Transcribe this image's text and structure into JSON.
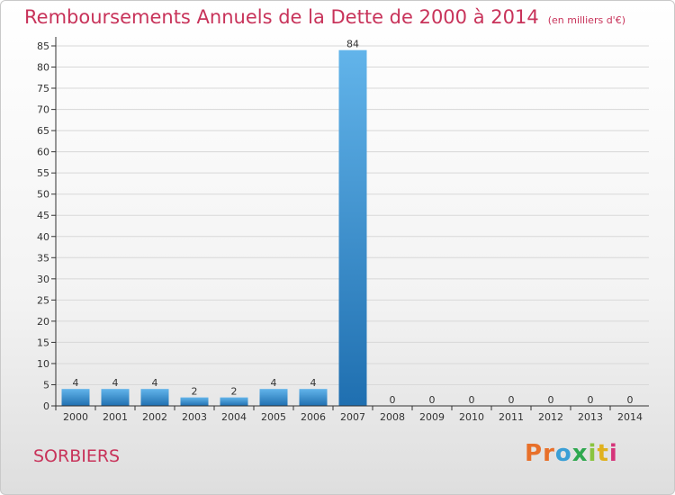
{
  "title": "Remboursements Annuels de la Dette de 2000 à 2014",
  "unit_note": "(en milliers d'€)",
  "commune": "SORBIERS",
  "logo": {
    "letters": [
      "P",
      "r",
      "o",
      "x",
      "i",
      "t",
      "i"
    ],
    "colors": [
      "#e8702a",
      "#e8702a",
      "#3a9fd6",
      "#2fa84f",
      "#8ac43f",
      "#e0b11e",
      "#d6357a"
    ]
  },
  "colors": {
    "title": "#c8335a",
    "bar_top": "#62b4ea",
    "bar_bottom": "#1f6fb0",
    "grid": "#d8d8d8",
    "axis": "#333333"
  },
  "chart_data": {
    "type": "bar",
    "categories": [
      "2000",
      "2001",
      "2002",
      "2003",
      "2004",
      "2005",
      "2006",
      "2007",
      "2008",
      "2009",
      "2010",
      "2011",
      "2012",
      "2013",
      "2014"
    ],
    "values": [
      4,
      4,
      4,
      2,
      2,
      4,
      4,
      84,
      0,
      0,
      0,
      0,
      0,
      0,
      0
    ],
    "data_labels": [
      "4",
      "4",
      "4",
      "2",
      "2",
      "4",
      "4",
      "84",
      "0",
      "0",
      "0",
      "0",
      "0",
      "0",
      "0"
    ],
    "yticks": [
      0,
      5,
      10,
      15,
      20,
      25,
      30,
      35,
      40,
      45,
      50,
      55,
      60,
      65,
      70,
      75,
      80,
      85
    ],
    "ylim": [
      0,
      85
    ],
    "grid": true
  }
}
